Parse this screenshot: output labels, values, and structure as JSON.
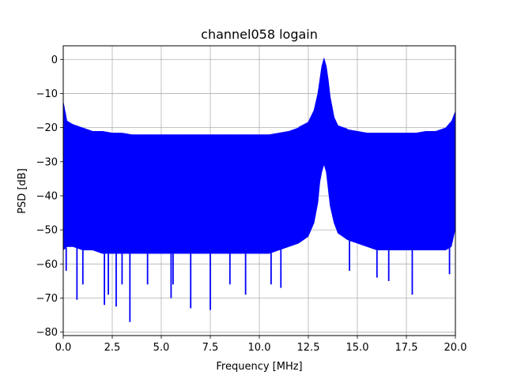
{
  "chart_data": {
    "type": "line",
    "title": "channel058 logain",
    "xlabel": "Frequency [MHz]",
    "ylabel": "PSD [dB]",
    "xlim": [
      0,
      20
    ],
    "ylim": [
      -81,
      4
    ],
    "xticks": [
      0.0,
      2.5,
      5.0,
      7.5,
      10.0,
      12.5,
      15.0,
      17.5,
      20.0
    ],
    "xtick_labels": [
      "0.0",
      "2.5",
      "5.0",
      "7.5",
      "10.0",
      "12.5",
      "15.0",
      "17.5",
      "20.0"
    ],
    "yticks": [
      0,
      -10,
      -20,
      -30,
      -40,
      -50,
      -60,
      -70,
      -80
    ],
    "ytick_labels": [
      "0",
      "−10",
      "−20",
      "−30",
      "−40",
      "−50",
      "−60",
      "−70",
      "−80"
    ],
    "grid": true,
    "legend": "none",
    "color": "#0000ff",
    "series": [
      {
        "x": [
          0.0,
          0.2,
          0.5,
          1.0,
          1.5,
          2.0,
          2.5,
          3.0,
          3.5,
          4.0,
          4.5,
          5.0,
          5.5,
          6.0,
          6.5,
          7.0,
          7.5,
          8.0,
          8.5,
          9.0,
          9.5,
          10.0,
          10.5,
          11.0,
          11.5,
          12.0,
          12.5,
          12.8,
          13.0,
          13.1,
          13.2,
          13.3,
          13.4,
          13.5,
          13.6,
          13.8,
          14.0,
          14.5,
          15.0,
          15.5,
          16.0,
          16.5,
          17.0,
          17.5,
          18.0,
          18.5,
          19.0,
          19.5,
          19.8,
          20.0
        ],
        "upper": [
          -12,
          -18,
          -19,
          -20,
          -21,
          -21,
          -21.5,
          -21.5,
          -22,
          -22,
          -22,
          -22,
          -22,
          -22,
          -22,
          -22,
          -22,
          -22,
          -22,
          -22,
          -22,
          -22,
          -22,
          -21.5,
          -21,
          -20,
          -18.5,
          -15,
          -10,
          -6,
          -2,
          0,
          -2,
          -6,
          -11,
          -17,
          -19.5,
          -20.5,
          -21,
          -21.5,
          -21.5,
          -21.5,
          -21.5,
          -21.5,
          -21.5,
          -21,
          -21,
          -20,
          -18,
          -15
        ],
        "lower": [
          -56,
          -55,
          -55,
          -56,
          -56,
          -57,
          -57,
          -57,
          -57,
          -57,
          -57,
          -57,
          -57,
          -57,
          -57,
          -57,
          -57,
          -57,
          -57,
          -57,
          -57,
          -57,
          -57,
          -56,
          -55,
          -54,
          -52,
          -48,
          -42,
          -36,
          -33,
          -31,
          -33,
          -38,
          -43,
          -48,
          -51,
          -53,
          -54,
          -55,
          -56,
          -56,
          -56,
          -56,
          -56,
          -56,
          -56,
          -56,
          -55,
          -50
        ]
      }
    ],
    "spikes": [
      {
        "x": 0.15,
        "y": -62
      },
      {
        "x": 0.7,
        "y": -70.5
      },
      {
        "x": 1.0,
        "y": -66
      },
      {
        "x": 2.1,
        "y": -72
      },
      {
        "x": 2.3,
        "y": -69
      },
      {
        "x": 2.7,
        "y": -72.5
      },
      {
        "x": 3.0,
        "y": -66
      },
      {
        "x": 3.4,
        "y": -77
      },
      {
        "x": 4.3,
        "y": -66
      },
      {
        "x": 5.5,
        "y": -70
      },
      {
        "x": 5.6,
        "y": -66
      },
      {
        "x": 6.5,
        "y": -73
      },
      {
        "x": 7.5,
        "y": -73.5
      },
      {
        "x": 8.5,
        "y": -66
      },
      {
        "x": 9.3,
        "y": -69
      },
      {
        "x": 10.6,
        "y": -66
      },
      {
        "x": 11.1,
        "y": -67
      },
      {
        "x": 14.6,
        "y": -62
      },
      {
        "x": 16.0,
        "y": -64
      },
      {
        "x": 16.6,
        "y": -65
      },
      {
        "x": 17.8,
        "y": -69
      },
      {
        "x": 19.7,
        "y": -63
      }
    ]
  }
}
